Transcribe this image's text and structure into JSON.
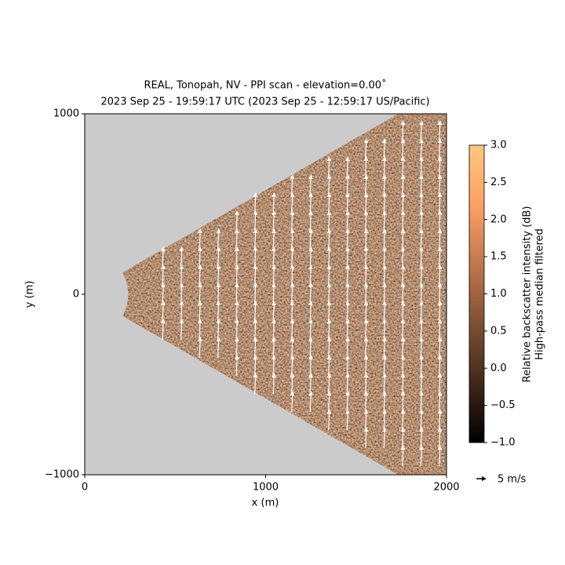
{
  "chart_data": {
    "type": "ppi",
    "title": "REAL, Tonopah, NV - PPI scan - elevation=0.00$^\\circ$",
    "title_display": "REAL, Tonopah, NV - PPI scan - elevation=0.00˚",
    "subtitle": "2023 Sep 25 - 19:59:17 UTC (2023 Sep 25 - 12:59:17 US/Pacific)",
    "xlabel": "x (m)",
    "ylabel": "y (m)",
    "xlim": [
      0,
      2000
    ],
    "ylim": [
      -1000,
      1000
    ],
    "xticks": [
      0,
      1000,
      2000
    ],
    "yticks": [
      {
        "value": -1000,
        "label": "−1000"
      },
      0,
      1000
    ],
    "colorbar": {
      "label": [
        "Relative backscatter intensity (dB)",
        "High-pass median filtered"
      ],
      "lim": [
        -1,
        3
      ],
      "ticks": [
        {
          "value": -1,
          "label": "−1.0"
        },
        {
          "value": -0.5,
          "label": "−0.5"
        },
        {
          "value": 0,
          "label": "0.0"
        },
        {
          "value": 0.5,
          "label": "0.5"
        },
        {
          "value": 1,
          "label": "1.0"
        },
        {
          "value": 1.5,
          "label": "1.5"
        },
        {
          "value": 2,
          "label": "2.0"
        },
        {
          "value": 2.5,
          "label": "2.5"
        },
        {
          "value": 3,
          "label": "3.0"
        }
      ]
    },
    "quiver_key": {
      "value": 5,
      "label": "5 m/s"
    }
  }
}
